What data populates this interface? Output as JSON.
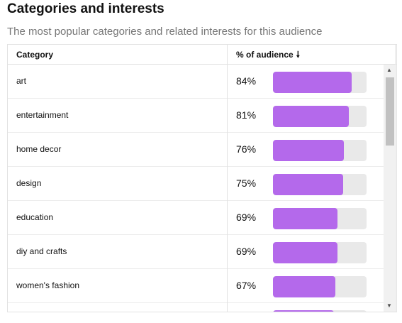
{
  "header": {
    "title": "Categories and interests",
    "subtitle": "The most popular categories and related interests for this audience"
  },
  "table": {
    "columns": {
      "category": "Category",
      "audience": "% of audience"
    },
    "sort_icon": "arrow-down-icon",
    "rows": [
      {
        "category": "art",
        "percent_label": "84%",
        "value": 84
      },
      {
        "category": "entertainment",
        "percent_label": "81%",
        "value": 81
      },
      {
        "category": "home decor",
        "percent_label": "76%",
        "value": 76
      },
      {
        "category": "design",
        "percent_label": "75%",
        "value": 75
      },
      {
        "category": "education",
        "percent_label": "69%",
        "value": 69
      },
      {
        "category": "diy and crafts",
        "percent_label": "69%",
        "value": 69
      },
      {
        "category": "women's fashion",
        "percent_label": "67%",
        "value": 67
      },
      {
        "category": "",
        "percent_label": "",
        "value": 65
      }
    ]
  },
  "colors": {
    "bar_fill": "#b469eb",
    "bar_track": "#e9e9e9",
    "subtitle_text": "#767676"
  },
  "scrollbar": {
    "up_icon": "triangle-up-icon",
    "down_icon": "triangle-down-icon"
  }
}
